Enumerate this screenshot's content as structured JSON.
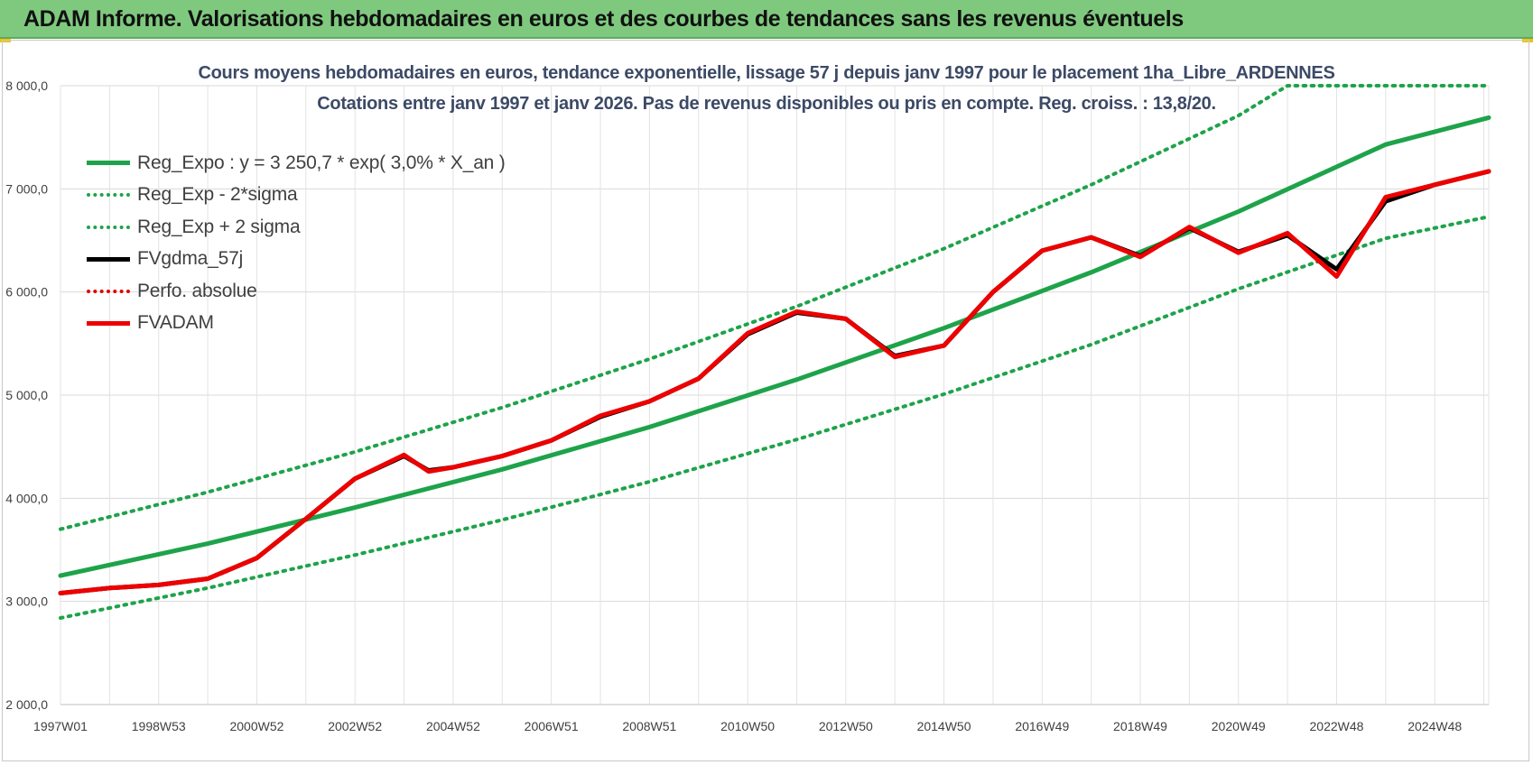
{
  "banner": {
    "title": "ADAM Informe. Valorisations hebdomadaires en euros et des courbes de tendances sans les revenus éventuels"
  },
  "chart_data": {
    "type": "line",
    "title": "Cours moyens hebdomadaires en euros, tendance exponentielle, lissage 57 j depuis janv 1997  pour le placement 1ha_Libre_ARDENNES",
    "subtitle": "Cotations entre janv 1997 et janv 2026. Pas de revenus disponibles ou pris en compte. Reg. croiss. : 13,8/20.",
    "xlabel": "",
    "ylabel": "",
    "ylim": [
      2000,
      8000
    ],
    "ytick_values": [
      2000,
      3000,
      4000,
      5000,
      6000,
      7000,
      8000
    ],
    "yticks": [
      "2 000,0",
      "3 000,0",
      "4 000,0",
      "5 000,0",
      "6 000,0",
      "7 000,0",
      "8 000,0"
    ],
    "xlim": [
      1997.0,
      2026.1
    ],
    "xtick_values": [
      1997.0,
      1999.0,
      2001.0,
      2003.0,
      2005.0,
      2007.0,
      2009.0,
      2011.0,
      2013.0,
      2015.0,
      2017.0,
      2019.0,
      2021.0,
      2023.0,
      2025.0
    ],
    "xticks": [
      "1997W01",
      "1998W53",
      "2000W52",
      "2002W52",
      "2004W52",
      "2006W51",
      "2008W51",
      "2010W50",
      "2012W50",
      "2014W50",
      "2016W49",
      "2018W49",
      "2020W49",
      "2022W48",
      "2024W48"
    ],
    "grid": true,
    "legend_position": "top-left",
    "colors": {
      "reg": "#1ea34a",
      "reg_dotted": "#1ea34a",
      "fv57": "#000000",
      "perfo": "#e00000",
      "fvadam": "#ee0000"
    },
    "series": [
      {
        "name": "Reg_Expo : y = 3 250,7 * exp( 3,0% *  X_an )",
        "style": "solid",
        "color": "#1ea34a",
        "x": [
          1997.0,
          2000.0,
          2003.0,
          2006.0,
          2009.0,
          2012.0,
          2015.0,
          2018.0,
          2021.0,
          2024.0,
          2026.1
        ],
        "y": [
          3250,
          3560,
          3910,
          4280,
          4690,
          5150,
          5650,
          6190,
          6780,
          7430,
          7690
        ]
      },
      {
        "name": "Reg_Exp - 2*sigma",
        "style": "dotted",
        "color": "#1ea34a",
        "x": [
          1997.0,
          2000.0,
          2003.0,
          2006.0,
          2009.0,
          2012.0,
          2015.0,
          2018.0,
          2021.0,
          2024.0,
          2026.1
        ],
        "y": [
          2840,
          3130,
          3450,
          3790,
          4160,
          4570,
          5010,
          5490,
          6030,
          6520,
          6730
        ]
      },
      {
        "name": "Reg_Exp + 2 sigma",
        "style": "dotted",
        "color": "#1ea34a",
        "x": [
          1997.0,
          2000.0,
          2003.0,
          2006.0,
          2009.0,
          2012.0,
          2015.0,
          2018.0,
          2021.0,
          2022.0,
          2024.0,
          2026.1
        ],
        "y": [
          3700,
          4060,
          4450,
          4880,
          5350,
          5860,
          6420,
          7040,
          7710,
          8000,
          8000,
          8000
        ]
      },
      {
        "name": "FVgdma_57j",
        "style": "solid",
        "color": "#000000",
        "x": [
          1997.0,
          1998.0,
          1999.0,
          2000.0,
          2001.0,
          2002.0,
          2003.0,
          2004.0,
          2004.5,
          2005.0,
          2006.0,
          2007.0,
          2008.0,
          2009.0,
          2010.0,
          2011.0,
          2012.0,
          2013.0,
          2014.0,
          2015.0,
          2016.0,
          2017.0,
          2018.0,
          2019.0,
          2020.0,
          2021.0,
          2022.0,
          2023.0,
          2024.0,
          2025.0,
          2026.1
        ],
        "y": [
          3080,
          3130,
          3160,
          3220,
          3420,
          3800,
          4190,
          4410,
          4270,
          4300,
          4410,
          4560,
          4790,
          4940,
          5160,
          5590,
          5800,
          5740,
          5380,
          5480,
          6000,
          6400,
          6530,
          6350,
          6620,
          6390,
          6550,
          6220,
          6880,
          7040,
          7170
        ]
      },
      {
        "name": "Perfo. absolue",
        "style": "dotted",
        "color": "#e00000",
        "x": [],
        "y": []
      },
      {
        "name": "FVADAM",
        "style": "solid",
        "color": "#ee0000",
        "x": [
          1997.0,
          1998.0,
          1999.0,
          2000.0,
          2001.0,
          2002.0,
          2003.0,
          2004.0,
          2004.5,
          2005.0,
          2006.0,
          2007.0,
          2008.0,
          2009.0,
          2010.0,
          2011.0,
          2012.0,
          2013.0,
          2014.0,
          2015.0,
          2016.0,
          2017.0,
          2018.0,
          2019.0,
          2020.0,
          2021.0,
          2022.0,
          2023.0,
          2024.0,
          2025.0,
          2026.1
        ],
        "y": [
          3080,
          3130,
          3160,
          3220,
          3420,
          3800,
          4190,
          4420,
          4260,
          4300,
          4410,
          4560,
          4800,
          4940,
          5160,
          5600,
          5810,
          5740,
          5370,
          5480,
          6000,
          6400,
          6530,
          6340,
          6630,
          6380,
          6570,
          6150,
          6920,
          7040,
          7170
        ]
      }
    ]
  }
}
